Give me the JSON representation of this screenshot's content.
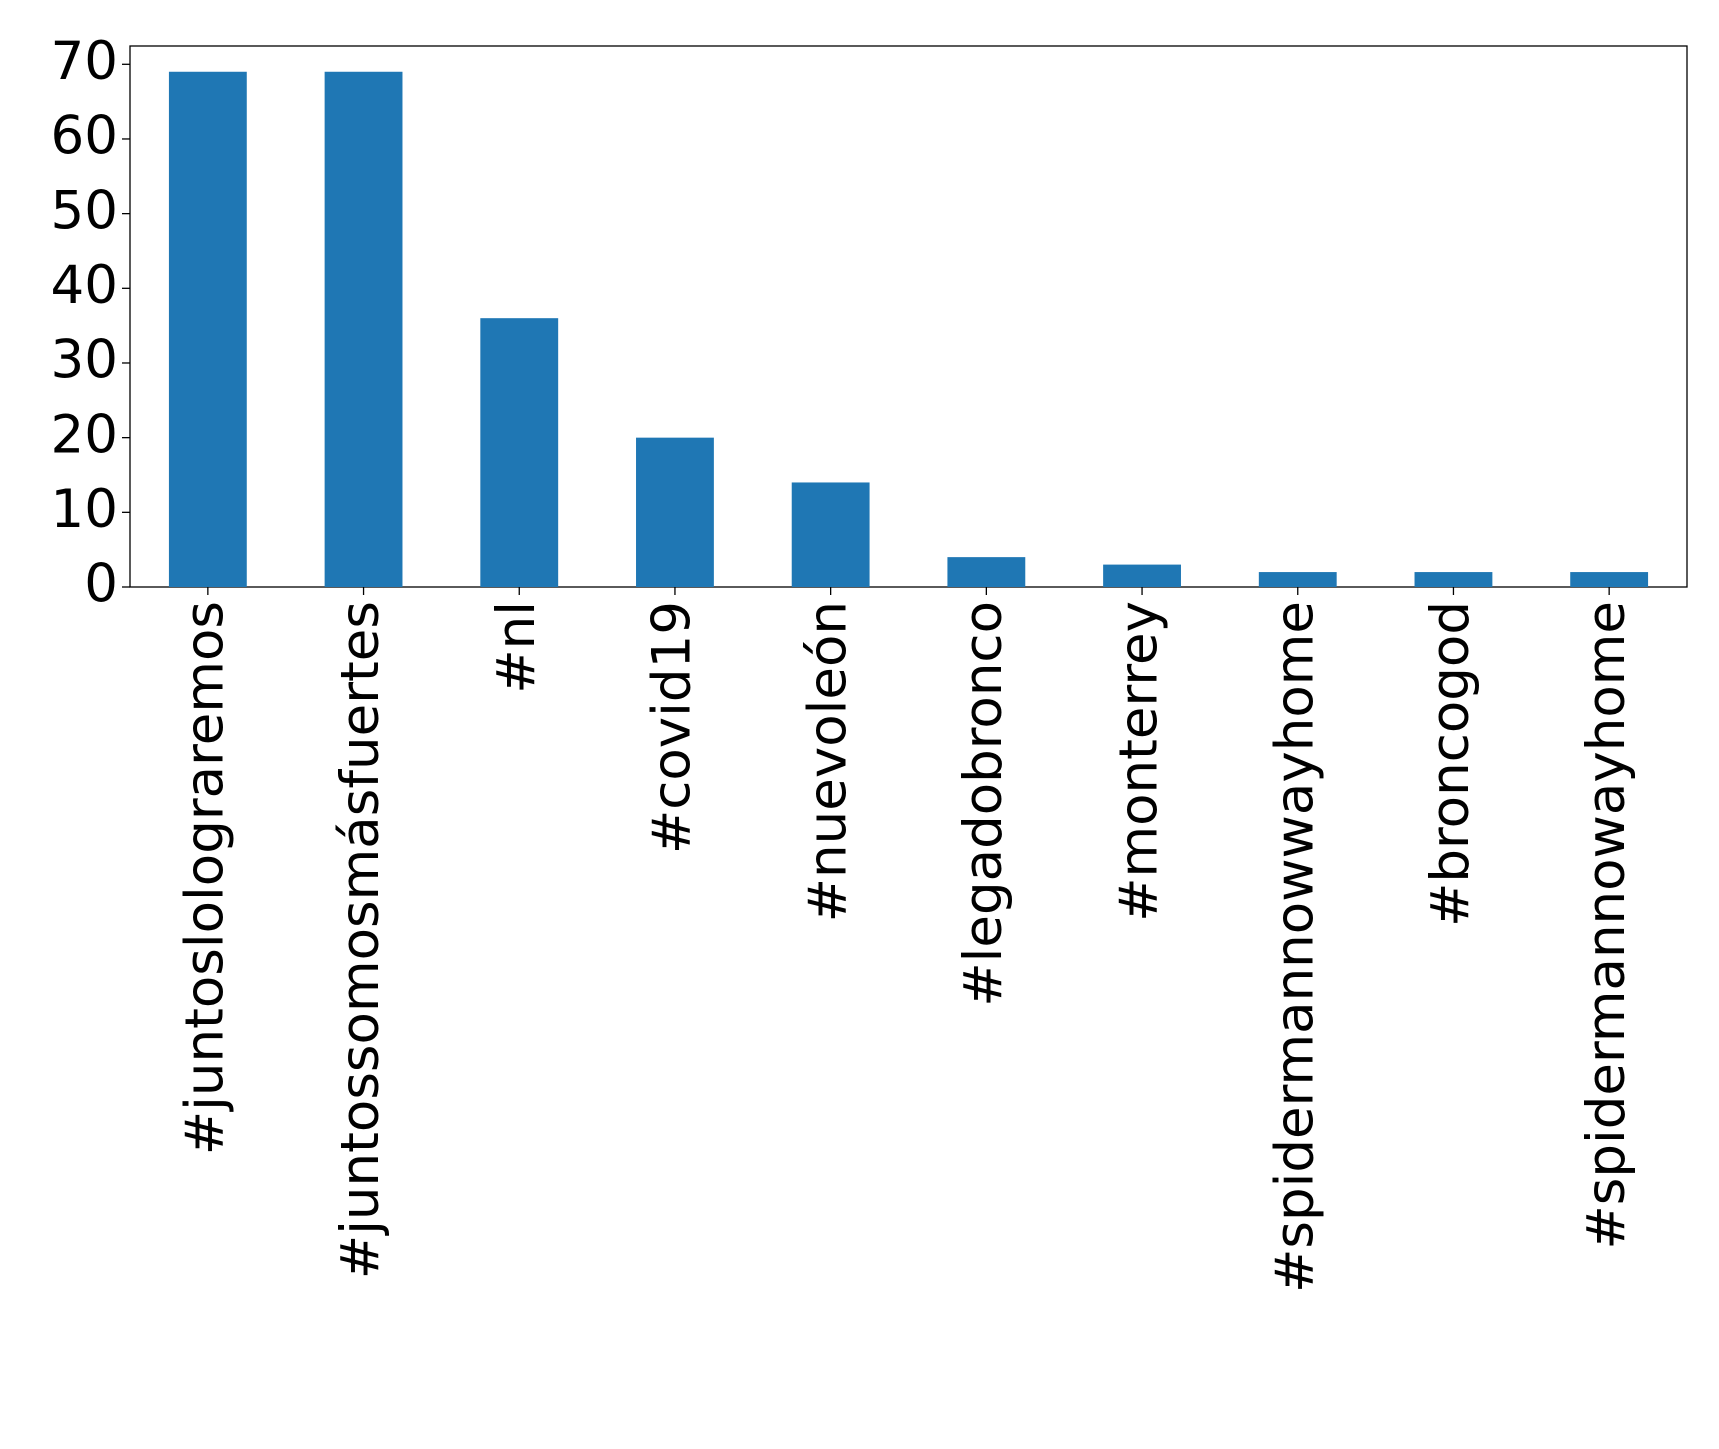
{
  "chart_data": {
    "type": "bar",
    "categories": [
      "#juntoslolograremos",
      "#juntossomosmásfuertes",
      "#nl",
      "#covid19",
      "#nuevoleón",
      "#legadobronco",
      "#monterrey",
      "#spidermannowwayhome",
      "#broncogod",
      "#spidermannowayhome"
    ],
    "values": [
      69,
      69,
      36,
      20,
      14,
      4,
      3,
      2,
      2,
      2
    ],
    "color": "#1f77b4",
    "ylim": [
      0,
      72.45
    ],
    "yticks": [
      0,
      10,
      20,
      30,
      40,
      50,
      60,
      70
    ],
    "grid": false
  }
}
